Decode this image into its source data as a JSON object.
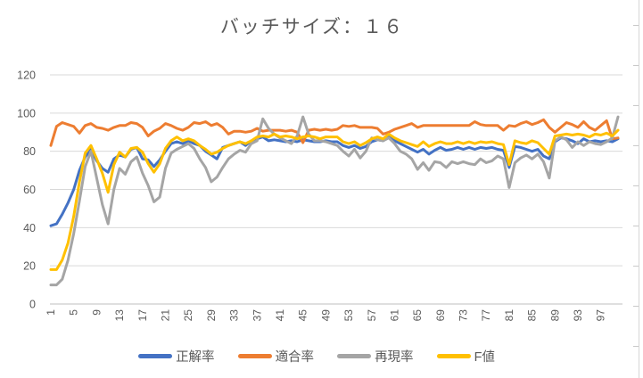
{
  "chart_data": {
    "type": "line",
    "title": "バッチサイズ：１６",
    "n_points": 100,
    "x_tick_start": 1,
    "x_tick_interval": 4,
    "x_tick_labels": [
      "1",
      "5",
      "9",
      "13",
      "17",
      "21",
      "25",
      "29",
      "33",
      "37",
      "41",
      "45",
      "49",
      "53",
      "57",
      "61",
      "65",
      "69",
      "73",
      "77",
      "81",
      "85",
      "89",
      "93",
      "97"
    ],
    "y_ticks": [
      0,
      20,
      40,
      60,
      80,
      100,
      120
    ],
    "ylim": [
      0,
      120
    ],
    "grid": true,
    "legend_position": "bottom",
    "axis_color": "#bfbfbf",
    "grid_color": "#d9d9d9",
    "text_color": "#595959",
    "series": [
      {
        "name": "正解率",
        "color": "#4472C4",
        "values": [
          41,
          42,
          47,
          53,
          60,
          70,
          77,
          81,
          75,
          71,
          69,
          76,
          78,
          77,
          81,
          82,
          76,
          75.5,
          72,
          75.5,
          80,
          84,
          85,
          84,
          85.5,
          84,
          83,
          80,
          78,
          76,
          82,
          83,
          84,
          85,
          83,
          85.5,
          86.5,
          87.5,
          85.5,
          86,
          85.5,
          85,
          85.5,
          85,
          86,
          85.5,
          85,
          85,
          85.5,
          85,
          85,
          83,
          82,
          83,
          81.5,
          82.5,
          85,
          86,
          85.5,
          87.5,
          85.5,
          84,
          82.5,
          81,
          79.5,
          81,
          78.5,
          80.5,
          82,
          80.5,
          81,
          82,
          81,
          82,
          81,
          82,
          81.5,
          82,
          81,
          80.5,
          71.5,
          82.5,
          82,
          81,
          80,
          81,
          77.5,
          76,
          85,
          87,
          86.5,
          85.5,
          84,
          86.5,
          85,
          85.5,
          85,
          85.5,
          85,
          86.5
        ]
      },
      {
        "name": "適合率",
        "color": "#ED7D31",
        "values": [
          83,
          93,
          95,
          94,
          93,
          89.5,
          93.5,
          94.5,
          92.5,
          92,
          91,
          92.5,
          93.5,
          93.5,
          95,
          94.5,
          92.5,
          88,
          90.5,
          92,
          94.5,
          93.5,
          92,
          91,
          92.5,
          95,
          94.5,
          95.5,
          93.5,
          94.5,
          92.5,
          89,
          90.5,
          90.5,
          90,
          90.5,
          92,
          90.5,
          91,
          91,
          91,
          90.5,
          91,
          90,
          84.5,
          91,
          91.5,
          91,
          91.5,
          91,
          91.5,
          93.5,
          93,
          93.5,
          92.5,
          92.5,
          92.5,
          92,
          89,
          90,
          91.5,
          92.5,
          93.5,
          94.5,
          92.5,
          93.5,
          93.5,
          93.5,
          93.5,
          93.5,
          93.5,
          93.5,
          93.5,
          93.5,
          95.5,
          94,
          93.5,
          93.5,
          93.5,
          91,
          93.5,
          93,
          94.5,
          95.5,
          94,
          95,
          96.5,
          92.5,
          90,
          92.5,
          95,
          94,
          92.5,
          95.5,
          92.5,
          91,
          93.5,
          96,
          86.5,
          87
        ]
      },
      {
        "name": "再現率",
        "color": "#A5A5A5",
        "values": [
          10,
          10,
          13,
          23,
          37,
          54,
          72,
          80,
          66,
          52,
          42,
          60,
          71,
          68,
          74.5,
          77,
          68.5,
          62,
          53.5,
          56,
          71,
          79,
          81,
          82.5,
          84,
          81.5,
          76,
          71.5,
          64,
          66.5,
          71.5,
          76,
          78.5,
          80.5,
          79.5,
          84,
          85.5,
          97,
          92,
          89,
          87,
          85.5,
          84,
          88,
          98,
          89,
          85.5,
          85.5,
          85,
          84,
          83,
          80,
          77.5,
          81,
          76.5,
          80,
          87,
          86,
          85.5,
          87,
          84,
          80,
          78.5,
          76,
          70.5,
          74,
          70,
          74.5,
          74,
          71.5,
          74.5,
          73.5,
          74.5,
          73.5,
          73,
          76,
          74,
          75,
          77.5,
          76,
          61,
          74,
          76.5,
          78,
          76,
          78.5,
          74.5,
          66,
          85.5,
          87.5,
          86,
          82,
          85,
          83,
          85,
          84,
          83.5,
          85,
          87,
          98
        ]
      },
      {
        "name": "F値",
        "color": "#FFC000",
        "values": [
          18,
          18,
          23,
          32,
          46,
          64,
          79,
          83,
          76,
          68.5,
          58.5,
          73,
          79.5,
          77,
          81.5,
          82,
          79.5,
          73.5,
          69,
          73.5,
          81.5,
          85.5,
          87.5,
          85.5,
          86.5,
          85.5,
          83,
          81,
          78.5,
          79.5,
          81.5,
          83,
          84,
          85,
          84,
          85.5,
          87.5,
          88,
          87.5,
          89,
          87.5,
          88,
          87.5,
          86.5,
          87.5,
          88,
          87.5,
          86.5,
          87.5,
          87.5,
          87.5,
          85,
          84,
          85,
          83,
          84.5,
          86.5,
          87.5,
          86.5,
          89,
          87,
          85.5,
          84.5,
          83.5,
          82.5,
          85,
          82.5,
          84,
          85,
          84,
          84,
          85,
          84,
          85,
          84,
          85,
          84.5,
          85,
          84,
          83.5,
          73,
          85.5,
          84.5,
          84,
          85.5,
          84.5,
          81.5,
          78.5,
          88,
          88.5,
          89,
          88.5,
          89,
          88.5,
          87.5,
          89,
          88.5,
          89.5,
          88,
          91
        ]
      }
    ]
  }
}
